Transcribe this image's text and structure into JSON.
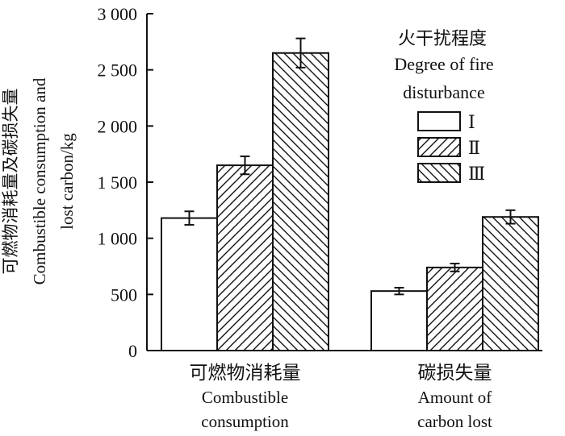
{
  "chart_data": {
    "type": "bar",
    "categories": [
      {
        "cn": "可燃物消耗量",
        "en": [
          "Combustible",
          "consumption"
        ]
      },
      {
        "cn": "碳损失量",
        "en": [
          "Amount of",
          "carbon lost"
        ]
      }
    ],
    "series": [
      {
        "name": "Ⅰ",
        "pattern": "none",
        "values": [
          1180,
          530
        ],
        "errors": [
          60,
          30
        ]
      },
      {
        "name": "Ⅱ",
        "pattern": "diag-up",
        "values": [
          1650,
          740
        ],
        "errors": [
          80,
          35
        ]
      },
      {
        "name": "Ⅲ",
        "pattern": "diag-down",
        "values": [
          2650,
          1190
        ],
        "errors": [
          130,
          60
        ]
      }
    ],
    "ylabel": [
      "可燃物消耗量及碳损失量",
      "Combustible consumption and",
      "lost carbon/kg"
    ],
    "ylim": [
      0,
      3000
    ],
    "yticks": [
      0,
      500,
      1000,
      1500,
      2000,
      2500,
      3000
    ],
    "ytick_labels": [
      "0",
      "500",
      "1 000",
      "1 500",
      "2 000",
      "2 500",
      "3 000"
    ],
    "legend": {
      "title_cn": "火干扰程度",
      "title_en": [
        "Degree of fire",
        "disturbance"
      ],
      "placement": "top-right"
    },
    "grid": false,
    "colors": {
      "bar_fill": "#ffffff",
      "stroke": "#111111",
      "hatch": "#111111"
    }
  }
}
